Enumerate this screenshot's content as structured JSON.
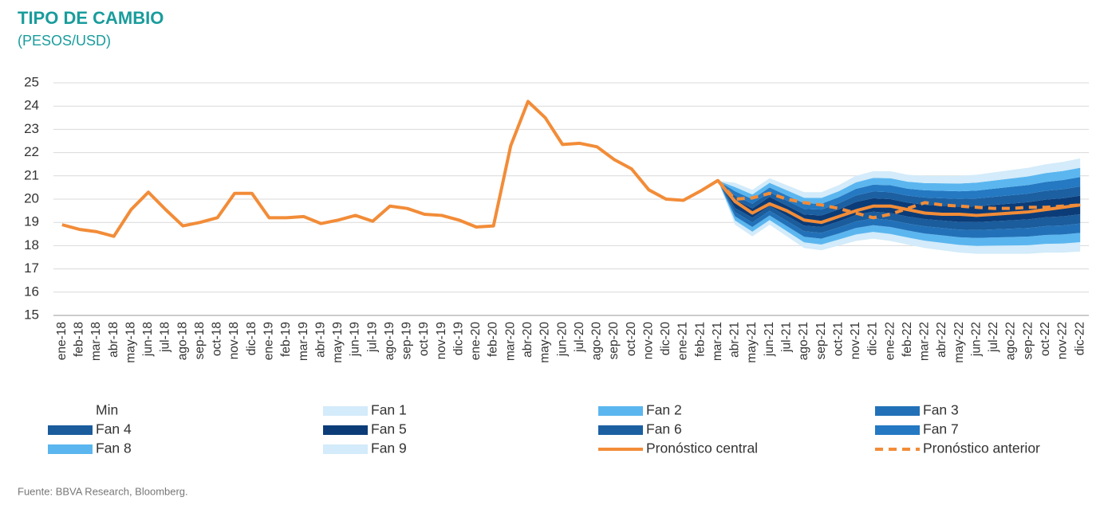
{
  "chart_data": {
    "type": "fan",
    "title": "TIPO DE CAMBIO",
    "subtitle": "(PESOS/USD)",
    "source": "Fuente: BBVA Research, Bloomberg.",
    "categories": [
      "ene-18",
      "feb-18",
      "mar-18",
      "abr-18",
      "may-18",
      "jun-18",
      "jul-18",
      "ago-18",
      "sep-18",
      "oct-18",
      "nov-18",
      "dic-18",
      "ene-19",
      "feb-19",
      "mar-19",
      "abr-19",
      "may-19",
      "jun-19",
      "jul-19",
      "ago-19",
      "sep-19",
      "oct-19",
      "nov-19",
      "dic-19",
      "ene-20",
      "feb-20",
      "mar-20",
      "abr-20",
      "may-20",
      "jun-20",
      "jul-20",
      "ago-20",
      "sep-20",
      "oct-20",
      "nov-20",
      "dic-20",
      "ene-21",
      "feb-21",
      "mar-21",
      "abr-21",
      "may-21",
      "jun-21",
      "jul-21",
      "ago-21",
      "sep-21",
      "oct-21",
      "nov-21",
      "dic-21",
      "ene-22",
      "feb-22",
      "mar-22",
      "abr-22",
      "may-22",
      "jun-22",
      "jul-22",
      "ago-22",
      "sep-22",
      "oct-22",
      "nov-22",
      "dic-22"
    ],
    "ylim": [
      15,
      25
    ],
    "yticks": [
      15,
      16,
      17,
      18,
      19,
      20,
      21,
      22,
      23,
      24,
      25
    ],
    "grid": true,
    "series": [
      {
        "name": "Min",
        "type": "area",
        "values": [
          null,
          null,
          null,
          null,
          null,
          null,
          null,
          null,
          null,
          null,
          null,
          null,
          null,
          null,
          null,
          null,
          null,
          null,
          null,
          null,
          null,
          null,
          null,
          null,
          null,
          null,
          null,
          null,
          null,
          null,
          null,
          null,
          null,
          null,
          null,
          null,
          null,
          null,
          20.8,
          18.9,
          18.4,
          18.9,
          18.4,
          17.9,
          17.8,
          18.0,
          18.2,
          18.3,
          18.2,
          18.05,
          17.9,
          17.8,
          17.7,
          17.65,
          17.65,
          17.65,
          17.65,
          17.7,
          17.7,
          17.75
        ]
      },
      {
        "name": "Fan 1",
        "type": "area",
        "color": "#d3ebfa",
        "values": [
          null,
          null,
          null,
          null,
          null,
          null,
          null,
          null,
          null,
          null,
          null,
          null,
          null,
          null,
          null,
          null,
          null,
          null,
          null,
          null,
          null,
          null,
          null,
          null,
          null,
          null,
          null,
          null,
          null,
          null,
          null,
          null,
          null,
          null,
          null,
          null,
          null,
          null,
          0,
          0.18,
          0.2,
          0.2,
          0.22,
          0.24,
          0.25,
          0.26,
          0.28,
          0.29,
          0.3,
          0.3,
          0.31,
          0.32,
          0.33,
          0.34,
          0.35,
          0.36,
          0.37,
          0.38,
          0.39,
          0.4
        ]
      },
      {
        "name": "Fan 2",
        "type": "area",
        "color": "#5bb6ef",
        "values": [
          null,
          null,
          null,
          null,
          null,
          null,
          null,
          null,
          null,
          null,
          null,
          null,
          null,
          null,
          null,
          null,
          null,
          null,
          null,
          null,
          null,
          null,
          null,
          null,
          null,
          null,
          null,
          null,
          null,
          null,
          null,
          null,
          null,
          null,
          null,
          null,
          null,
          null,
          0,
          0.18,
          0.2,
          0.2,
          0.22,
          0.24,
          0.25,
          0.26,
          0.28,
          0.29,
          0.3,
          0.3,
          0.31,
          0.32,
          0.33,
          0.34,
          0.35,
          0.36,
          0.37,
          0.38,
          0.39,
          0.4
        ]
      },
      {
        "name": "Fan 3",
        "type": "area",
        "color": "#2271b8",
        "values": [
          null,
          null,
          null,
          null,
          null,
          null,
          null,
          null,
          null,
          null,
          null,
          null,
          null,
          null,
          null,
          null,
          null,
          null,
          null,
          null,
          null,
          null,
          null,
          null,
          null,
          null,
          null,
          null,
          null,
          null,
          null,
          null,
          null,
          null,
          null,
          null,
          null,
          null,
          0,
          0.18,
          0.2,
          0.2,
          0.22,
          0.24,
          0.25,
          0.26,
          0.28,
          0.29,
          0.3,
          0.3,
          0.31,
          0.32,
          0.33,
          0.34,
          0.35,
          0.36,
          0.37,
          0.38,
          0.39,
          0.4
        ]
      },
      {
        "name": "Fan 4",
        "type": "area",
        "color": "#1a5c9c",
        "values": [
          null,
          null,
          null,
          null,
          null,
          null,
          null,
          null,
          null,
          null,
          null,
          null,
          null,
          null,
          null,
          null,
          null,
          null,
          null,
          null,
          null,
          null,
          null,
          null,
          null,
          null,
          null,
          null,
          null,
          null,
          null,
          null,
          null,
          null,
          null,
          null,
          null,
          null,
          0,
          0.18,
          0.2,
          0.2,
          0.22,
          0.24,
          0.25,
          0.26,
          0.28,
          0.29,
          0.3,
          0.3,
          0.31,
          0.32,
          0.33,
          0.34,
          0.35,
          0.36,
          0.37,
          0.38,
          0.39,
          0.4
        ]
      },
      {
        "name": "Fan 5",
        "type": "area",
        "color": "#0b3c78",
        "values": [
          null,
          null,
          null,
          null,
          null,
          null,
          null,
          null,
          null,
          null,
          null,
          null,
          null,
          null,
          null,
          null,
          null,
          null,
          null,
          null,
          null,
          null,
          null,
          null,
          null,
          null,
          null,
          null,
          null,
          null,
          null,
          null,
          null,
          null,
          null,
          null,
          null,
          null,
          0,
          0.36,
          0.4,
          0.4,
          0.44,
          0.48,
          0.5,
          0.52,
          0.56,
          0.58,
          0.6,
          0.6,
          0.62,
          0.64,
          0.66,
          0.68,
          0.7,
          0.72,
          0.74,
          0.76,
          0.78,
          0.8
        ]
      },
      {
        "name": "Fan 6",
        "type": "area",
        "color": "#1c60a2",
        "values": [
          null,
          null,
          null,
          null,
          null,
          null,
          null,
          null,
          null,
          null,
          null,
          null,
          null,
          null,
          null,
          null,
          null,
          null,
          null,
          null,
          null,
          null,
          null,
          null,
          null,
          null,
          null,
          null,
          null,
          null,
          null,
          null,
          null,
          null,
          null,
          null,
          null,
          null,
          0,
          0.18,
          0.2,
          0.2,
          0.22,
          0.24,
          0.25,
          0.26,
          0.28,
          0.29,
          0.3,
          0.3,
          0.31,
          0.32,
          0.33,
          0.34,
          0.35,
          0.36,
          0.37,
          0.38,
          0.39,
          0.4
        ]
      },
      {
        "name": "Fan 7",
        "type": "area",
        "color": "#2479c2",
        "values": [
          null,
          null,
          null,
          null,
          null,
          null,
          null,
          null,
          null,
          null,
          null,
          null,
          null,
          null,
          null,
          null,
          null,
          null,
          null,
          null,
          null,
          null,
          null,
          null,
          null,
          null,
          null,
          null,
          null,
          null,
          null,
          null,
          null,
          null,
          null,
          null,
          null,
          null,
          0,
          0.18,
          0.2,
          0.2,
          0.22,
          0.24,
          0.25,
          0.26,
          0.28,
          0.29,
          0.3,
          0.3,
          0.31,
          0.32,
          0.33,
          0.34,
          0.35,
          0.36,
          0.37,
          0.38,
          0.39,
          0.4
        ]
      },
      {
        "name": "Fan 8",
        "type": "area",
        "color": "#5bb6ef",
        "values": [
          null,
          null,
          null,
          null,
          null,
          null,
          null,
          null,
          null,
          null,
          null,
          null,
          null,
          null,
          null,
          null,
          null,
          null,
          null,
          null,
          null,
          null,
          null,
          null,
          null,
          null,
          null,
          null,
          null,
          null,
          null,
          null,
          null,
          null,
          null,
          null,
          null,
          null,
          0,
          0.18,
          0.2,
          0.2,
          0.22,
          0.24,
          0.25,
          0.26,
          0.28,
          0.29,
          0.3,
          0.3,
          0.31,
          0.32,
          0.33,
          0.34,
          0.35,
          0.36,
          0.37,
          0.38,
          0.39,
          0.4
        ]
      },
      {
        "name": "Fan 9",
        "type": "area",
        "color": "#d3ebfa",
        "values": [
          null,
          null,
          null,
          null,
          null,
          null,
          null,
          null,
          null,
          null,
          null,
          null,
          null,
          null,
          null,
          null,
          null,
          null,
          null,
          null,
          null,
          null,
          null,
          null,
          null,
          null,
          null,
          null,
          null,
          null,
          null,
          null,
          null,
          null,
          null,
          null,
          null,
          null,
          0,
          0.18,
          0.2,
          0.2,
          0.22,
          0.24,
          0.25,
          0.26,
          0.28,
          0.29,
          0.3,
          0.3,
          0.31,
          0.32,
          0.33,
          0.34,
          0.35,
          0.36,
          0.37,
          0.38,
          0.39,
          0.4
        ]
      },
      {
        "name": "Pronóstico central",
        "type": "line",
        "color": "#f28c38",
        "values": [
          18.9,
          18.7,
          18.6,
          18.4,
          19.55,
          20.3,
          19.55,
          18.85,
          19.0,
          19.2,
          20.25,
          20.25,
          19.2,
          19.2,
          19.25,
          18.95,
          19.1,
          19.3,
          19.05,
          19.7,
          19.6,
          19.35,
          19.3,
          19.1,
          18.8,
          18.85,
          22.3,
          24.2,
          23.5,
          22.35,
          22.4,
          22.25,
          21.7,
          21.3,
          20.4,
          20.0,
          19.95,
          20.35,
          20.8,
          19.9,
          19.4,
          19.8,
          19.5,
          19.1,
          19.0,
          19.25,
          19.5,
          19.7,
          19.7,
          19.55,
          19.4,
          19.35,
          19.35,
          19.3,
          19.35,
          19.4,
          19.45,
          19.55,
          19.65,
          19.75
        ]
      },
      {
        "name": "Pronóstico anterior",
        "type": "line",
        "dashed": true,
        "color": "#f28c38",
        "values": [
          null,
          null,
          null,
          null,
          null,
          null,
          null,
          null,
          null,
          null,
          null,
          null,
          null,
          null,
          null,
          null,
          null,
          null,
          null,
          null,
          null,
          null,
          null,
          null,
          null,
          null,
          null,
          null,
          null,
          null,
          null,
          null,
          null,
          null,
          null,
          null,
          null,
          null,
          20.8,
          20.0,
          20.05,
          20.25,
          20.0,
          19.85,
          19.75,
          19.6,
          19.4,
          19.2,
          19.35,
          19.6,
          19.85,
          19.75,
          19.7,
          19.65,
          19.6,
          19.6,
          19.65,
          19.65,
          19.7,
          19.75
        ]
      }
    ]
  }
}
